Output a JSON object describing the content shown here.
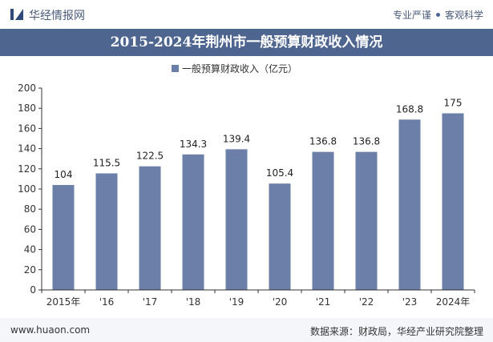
{
  "header": {
    "brand": "华经情报网",
    "tag1": "专业严谨",
    "tag2": "客观科学"
  },
  "footer": {
    "site": "www.huaon.com",
    "source": "数据来源：财政局，华经产业研究院整理"
  },
  "colors": {
    "bar": "#6b7fa8",
    "title_bg": "#4e6590",
    "axis": "#333333"
  },
  "chart_data": {
    "type": "bar",
    "title": "2015-2024年荆州市一般预算财政收入情况",
    "categories": [
      "2015年",
      "'16",
      "'17",
      "'18",
      "'19",
      "'20",
      "'21",
      "'22",
      "'23",
      "2024年"
    ],
    "series": [
      {
        "name": "一般预算财政收入（亿元）",
        "values": [
          104,
          115.5,
          122.5,
          134.3,
          139.4,
          105.4,
          136.8,
          136.8,
          168.8,
          175
        ]
      }
    ],
    "data_labels": [
      "104",
      "115.5",
      "122.5",
      "134.3",
      "139.4",
      "105.4",
      "136.8",
      "136.8",
      "168.8",
      "175"
    ],
    "ylim": [
      0,
      200
    ],
    "yticks": [
      0,
      20,
      40,
      60,
      80,
      100,
      120,
      140,
      160,
      180,
      200
    ],
    "legend_position": "top-center",
    "grid": false
  }
}
